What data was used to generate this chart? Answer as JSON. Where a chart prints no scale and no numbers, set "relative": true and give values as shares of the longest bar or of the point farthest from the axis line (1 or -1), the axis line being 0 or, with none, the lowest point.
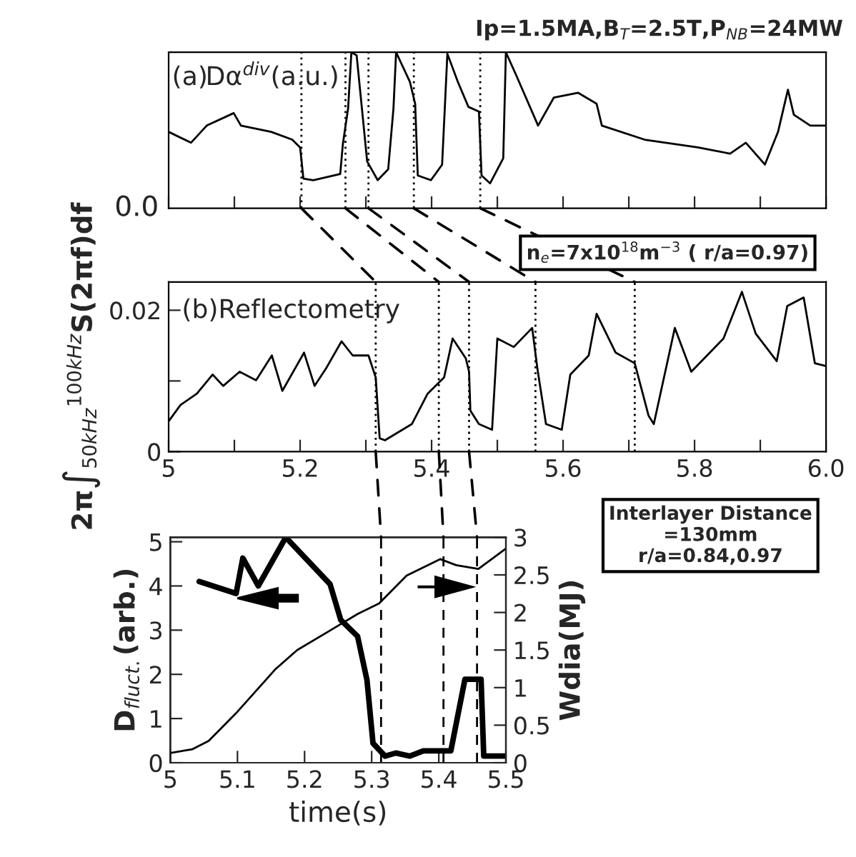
{
  "chart_data": [
    {
      "type": "line",
      "relative": true,
      "xlim": [
        5,
        6
      ],
      "xticks": [
        5,
        {
          "value": 5.1,
          "label": null
        },
        5.2,
        {
          "value": 5.3,
          "label": null
        },
        5.4,
        {
          "value": 5.5,
          "label": null
        },
        5.6,
        {
          "value": 5.7,
          "label": null
        },
        5.8,
        {
          "value": 5.9,
          "label": null
        },
        6.0
      ],
      "tick_labels": false,
      "grid": false,
      "legend": false,
      "annotations": [
        "(a)Dα$^{div}$(a.u.)",
        "0.0",
        "Ip=1.5MA,B$_{T}$=2.5T,P$_{NB}$=24MW"
      ],
      "ref_lines": [
        {
          "axis": "x",
          "value": 5.202,
          "label": null,
          "line_style": "dotted"
        },
        {
          "axis": "x",
          "value": 5.269,
          "label": null,
          "line_style": "dotted"
        },
        {
          "axis": "x",
          "value": 5.304,
          "label": null,
          "line_style": "dotted"
        },
        {
          "axis": "x",
          "value": 5.373,
          "label": null,
          "line_style": "dotted"
        },
        {
          "axis": "x",
          "value": 5.474,
          "label": null,
          "line_style": "dotted"
        }
      ],
      "series": [
        {
          "color": "#000000",
          "line_style": "solid",
          "x": [
            5.0,
            5.034,
            5.058,
            5.099,
            5.11,
            5.156,
            5.188,
            5.2,
            5.205,
            5.22,
            5.261,
            5.265,
            5.273,
            5.278,
            5.286,
            5.302,
            5.318,
            5.334,
            5.342,
            5.346,
            5.367,
            5.375,
            5.379,
            5.399,
            5.416,
            5.424,
            5.44,
            5.456,
            5.472,
            5.476,
            5.489,
            5.509,
            5.513,
            5.529,
            5.562,
            5.586,
            5.623,
            5.651,
            5.659,
            5.724,
            5.805,
            5.854,
            5.878,
            5.907,
            5.927,
            5.942,
            5.951,
            5.976,
            6.0
          ],
          "values": [
            0.49,
            0.42,
            0.53,
            0.61,
            0.53,
            0.49,
            0.44,
            0.39,
            0.19,
            0.18,
            0.22,
            0.41,
            0.64,
            1,
            0.98,
            0.3,
            0.18,
            0.25,
            0.64,
            1,
            0.81,
            0.67,
            0.21,
            0.18,
            0.28,
            0.99,
            0.81,
            0.65,
            0.62,
            0.21,
            0.16,
            0.32,
            1,
            0.85,
            0.53,
            0.71,
            0.74,
            0.67,
            0.53,
            0.44,
            0.39,
            0.35,
            0.42,
            0.28,
            0.49,
            0.76,
            0.6,
            0.53,
            0.53
          ]
        }
      ]
    },
    {
      "type": "line",
      "xlim": [
        5,
        6
      ],
      "xticks": [
        5,
        {
          "value": 5.1,
          "label": null
        },
        5.2,
        {
          "value": 5.3,
          "label": null
        },
        5.4,
        {
          "value": 5.5,
          "label": null
        },
        5.6,
        {
          "value": 5.7,
          "label": null
        },
        5.8,
        {
          "value": 5.9,
          "label": null
        },
        {
          "value": 6.0,
          "label": "6.0"
        }
      ],
      "ylim": [
        0,
        0.024
      ],
      "yticks": [
        0,
        {
          "value": 0.01,
          "label": null
        },
        0.02
      ],
      "grid": false,
      "legend": false,
      "ylabel": "2π∫$_{50kHz}$$^{100kHz}$S(2πf)df",
      "annotations": [
        "(b)Reflectometry",
        "n$_{e}$=7x10$^{18}$m$^{−3}$ ( r/a=0.97)"
      ],
      "ref_lines": [
        {
          "axis": "x",
          "value": 5.315,
          "label": null,
          "line_style": "dotted"
        },
        {
          "axis": "x",
          "value": 5.411,
          "label": null,
          "line_style": "dotted"
        },
        {
          "axis": "x",
          "value": 5.457,
          "label": null,
          "line_style": "dotted"
        },
        {
          "axis": "x",
          "value": 5.558,
          "label": null,
          "line_style": "dotted"
        },
        {
          "axis": "x",
          "value": 5.709,
          "label": null,
          "line_style": "dotted"
        }
      ],
      "series": [
        {
          "color": "#000000",
          "line_style": "solid",
          "x": [
            5.0,
            5.018,
            5.043,
            5.067,
            5.083,
            5.108,
            5.133,
            5.157,
            5.173,
            5.206,
            5.222,
            5.239,
            5.263,
            5.28,
            5.304,
            5.315,
            5.321,
            5.329,
            5.37,
            5.394,
            5.419,
            5.432,
            5.452,
            5.457,
            5.459,
            5.472,
            5.492,
            5.5,
            5.525,
            5.553,
            5.561,
            5.574,
            5.598,
            5.611,
            5.639,
            5.651,
            5.68,
            5.709,
            5.73,
            5.738,
            5.77,
            5.795,
            5.844,
            5.872,
            5.893,
            5.925,
            5.941,
            5.966,
            5.983,
            6.0
          ],
          "values": [
            0.0043,
            0.0066,
            0.0082,
            0.0109,
            0.0093,
            0.0113,
            0.0101,
            0.0136,
            0.0086,
            0.014,
            0.0093,
            0.0117,
            0.0156,
            0.0136,
            0.0136,
            0.0105,
            0.0019,
            0.0016,
            0.0039,
            0.0082,
            0.0105,
            0.016,
            0.0132,
            0.0113,
            0.0058,
            0.0039,
            0.0031,
            0.016,
            0.0148,
            0.0175,
            0.0117,
            0.0039,
            0.0031,
            0.0109,
            0.0136,
            0.0195,
            0.014,
            0.0125,
            0.0051,
            0.0039,
            0.0175,
            0.0113,
            0.016,
            0.0226,
            0.0167,
            0.0128,
            0.0206,
            0.0218,
            0.0125,
            0.0121
          ]
        }
      ]
    },
    {
      "type": "line",
      "xlim": [
        5,
        5.5
      ],
      "xticks": [
        5,
        5.1,
        5.2,
        5.3,
        5.4,
        5.5
      ],
      "ylim": [
        0,
        5.1
      ],
      "yticks": [
        0,
        1,
        2,
        3,
        4,
        5
      ],
      "y2lim": [
        0,
        3
      ],
      "y2ticks": [
        0,
        0.5,
        1,
        1.5,
        2,
        2.5,
        3
      ],
      "grid": false,
      "legend": false,
      "xlabel": "time(s)",
      "ylabel": "D$_{fluct.}$(arb.)",
      "y2label": "Wdia(MJ)",
      "annotations": [
        "Interlayer Distance\n=130mm\nr/a=0.84,0.97"
      ],
      "ref_lines": [
        {
          "axis": "x",
          "value": 5.314,
          "label": null,
          "line_style": "dashed"
        },
        {
          "axis": "x",
          "value": 5.407,
          "label": null,
          "line_style": "dashed"
        },
        {
          "axis": "x",
          "value": 5.457,
          "label": null,
          "line_style": "dashed"
        }
      ],
      "series": [
        {
          "color": "#000000",
          "line_style": "solid",
          "axis": "y",
          "x": [
            5.043,
            5.098,
            5.108,
            5.131,
            5.172,
            5.238,
            5.254,
            5.279,
            5.293,
            5.302,
            5.32,
            5.336,
            5.357,
            5.377,
            5.418,
            5.439,
            5.463,
            5.467,
            5.5
          ],
          "values": [
            4.1,
            3.83,
            4.63,
            4.0,
            5.1,
            4.04,
            3.23,
            2.86,
            1.87,
            0.44,
            0.15,
            0.22,
            0.15,
            0.27,
            0.27,
            1.89,
            1.89,
            0.15,
            0.15
          ]
        },
        {
          "color": "#000000",
          "line_style": "solid",
          "axis": "y2",
          "x": [
            5.0,
            5.033,
            5.057,
            5.098,
            5.156,
            5.189,
            5.238,
            5.279,
            5.311,
            5.352,
            5.402,
            5.426,
            5.459,
            5.5
          ],
          "values": [
            0.13,
            0.18,
            0.29,
            0.66,
            1.24,
            1.5,
            1.76,
            1.98,
            2.12,
            2.49,
            2.71,
            2.63,
            2.58,
            2.85
          ]
        }
      ]
    }
  ]
}
